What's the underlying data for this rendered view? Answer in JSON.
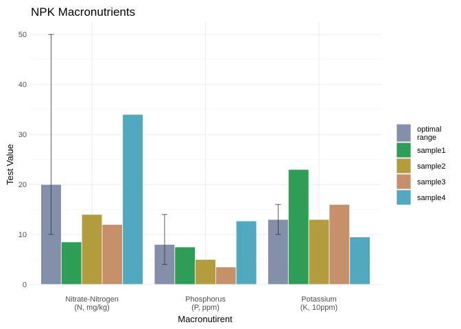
{
  "chart_data": {
    "type": "bar",
    "title": "NPK Macronutrients",
    "xlabel": "Macronutirent",
    "ylabel": "Test Value",
    "ylim": [
      0,
      52.5
    ],
    "yticks": [
      0,
      10,
      20,
      30,
      40,
      50
    ],
    "grid": true,
    "legend_position": "right",
    "categories": [
      [
        "Nitrate-Nitrogen",
        "(N, mg/kg)"
      ],
      [
        "Phosphorus",
        "(P, ppm)"
      ],
      [
        "Potassium",
        "(K, 10ppm)"
      ]
    ],
    "series": [
      {
        "name": "optimal range",
        "legend_lines": [
          "optimal",
          "range"
        ],
        "color": "#8490aa",
        "values": [
          20,
          8,
          13
        ],
        "error_bars": [
          [
            10,
            50
          ],
          [
            4,
            14
          ],
          [
            10,
            16
          ]
        ]
      },
      {
        "name": "sample1",
        "legend_lines": [
          "sample1"
        ],
        "color": "#2e9d56",
        "values": [
          8.5,
          7.5,
          23
        ]
      },
      {
        "name": "sample2",
        "legend_lines": [
          "sample2"
        ],
        "color": "#b29c3e",
        "values": [
          14,
          5,
          13
        ]
      },
      {
        "name": "sample3",
        "legend_lines": [
          "sample3"
        ],
        "color": "#c6916a",
        "values": [
          12,
          3.5,
          16
        ]
      },
      {
        "name": "sample4",
        "legend_lines": [
          "sample4"
        ],
        "color": "#50a9be",
        "values": [
          34,
          12.7,
          9.5
        ]
      }
    ]
  }
}
